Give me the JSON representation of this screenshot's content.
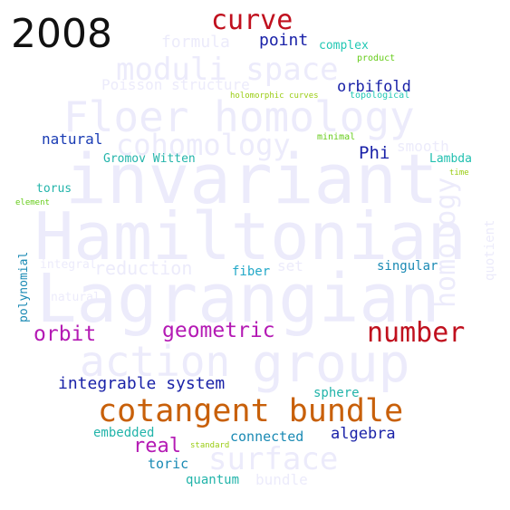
{
  "year": "2008",
  "background_words": {
    "invariant": "invariant",
    "hamiltonian": "Hamiltonian",
    "lagrangian": "Lagrangian",
    "floer_homology": "Floer homology",
    "moduli_space": "moduli space",
    "cohomology": "cohomology",
    "action": "action",
    "group": "group",
    "surface": "surface",
    "homology": "homology",
    "formula": "formula",
    "poisson_structure": "Poisson structure",
    "reduction": "reduction",
    "set": "set",
    "smooth": "smooth",
    "quotient": "quotient",
    "bundle": "bundle",
    "integral": "integral",
    "natural": "natural"
  },
  "words": {
    "curve": {
      "text": "curve",
      "color": "#c0101e"
    },
    "point": {
      "text": "point",
      "color": "#1a22a8"
    },
    "complex": {
      "text": "complex",
      "color": "#22c8b4"
    },
    "product": {
      "text": "product",
      "color": "#66cc1a"
    },
    "orbifold": {
      "text": "orbifold",
      "color": "#1a22a8"
    },
    "holomorphic_curves": {
      "text": "holomorphic curves",
      "color": "#99cc11"
    },
    "topological": {
      "text": "topological",
      "color": "#22c8b4"
    },
    "natural": {
      "text": "natural",
      "color": "#1a3cb4"
    },
    "minimal": {
      "text": "minimal",
      "color": "#66cc1a"
    },
    "phi": {
      "text": "Phi",
      "color": "#1a22a8"
    },
    "gromov_witten": {
      "text": "Gromov Witten",
      "color": "#22b4aa"
    },
    "lambda": {
      "text": "Lambda",
      "color": "#22c0b0"
    },
    "time": {
      "text": "time",
      "color": "#99cc11"
    },
    "torus": {
      "text": "torus",
      "color": "#22b4aa"
    },
    "element": {
      "text": "element",
      "color": "#66cc1a"
    },
    "polynomial": {
      "text": "polynomial",
      "color": "#1a8ab4"
    },
    "fiber": {
      "text": "fiber",
      "color": "#22a8c8"
    },
    "singular": {
      "text": "singular",
      "color": "#1a8ab4"
    },
    "orbit": {
      "text": "orbit",
      "color": "#b41ab4"
    },
    "geometric": {
      "text": "geometric",
      "color": "#b41ab4"
    },
    "number": {
      "text": "number",
      "color": "#c0101e"
    },
    "integrable_system": {
      "text": "integrable system",
      "color": "#1a22a8"
    },
    "sphere": {
      "text": "sphere",
      "color": "#22b4aa"
    },
    "cotangent_bundle": {
      "text": "cotangent bundle",
      "color": "#c8600a"
    },
    "embedded": {
      "text": "embedded",
      "color": "#22b4aa"
    },
    "real": {
      "text": "real",
      "color": "#b41ab4"
    },
    "connected": {
      "text": "connected",
      "color": "#1a8ab4"
    },
    "algebra": {
      "text": "algebra",
      "color": "#1a22a8"
    },
    "standard": {
      "text": "standard",
      "color": "#99cc11"
    },
    "toric": {
      "text": "toric",
      "color": "#1a8ab4"
    },
    "quantum": {
      "text": "quantum",
      "color": "#22b4aa"
    }
  }
}
